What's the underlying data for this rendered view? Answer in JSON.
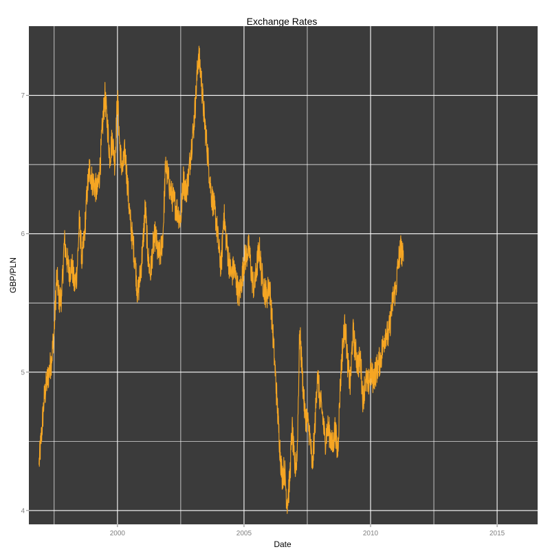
{
  "chart_data": {
    "type": "line",
    "title": "Exchange Rates",
    "xlabel": "Date",
    "ylabel": "GBP/PLN",
    "x_ticks": [
      {
        "year": 2000,
        "label": "2000"
      },
      {
        "year": 2005,
        "label": "2005"
      },
      {
        "year": 2010,
        "label": "2010"
      },
      {
        "year": 2015,
        "label": "2015"
      }
    ],
    "y_ticks": [
      {
        "value": 4,
        "label": "4"
      },
      {
        "value": 5,
        "label": "5"
      },
      {
        "value": 6,
        "label": "6"
      },
      {
        "value": 7,
        "label": "7"
      }
    ],
    "xlim": [
      1996.5,
      2016.6
    ],
    "ylim": [
      3.9,
      7.5
    ],
    "grid": true,
    "legend": "none",
    "colors": {
      "panel": "#3b3b3b",
      "grid": "#ffffff",
      "line": "#f6a623"
    },
    "series": [
      {
        "points": [
          [
            1996.9,
            4.33
          ],
          [
            1997.0,
            4.55
          ],
          [
            1997.1,
            4.8
          ],
          [
            1997.2,
            4.92
          ],
          [
            1997.3,
            5.0
          ],
          [
            1997.4,
            5.1
          ],
          [
            1997.5,
            5.3
          ],
          [
            1997.6,
            5.7
          ],
          [
            1997.7,
            5.52
          ],
          [
            1997.8,
            5.55
          ],
          [
            1997.9,
            5.95
          ],
          [
            1998.0,
            5.82
          ],
          [
            1998.1,
            5.72
          ],
          [
            1998.2,
            5.78
          ],
          [
            1998.3,
            5.62
          ],
          [
            1998.4,
            5.72
          ],
          [
            1998.5,
            6.1
          ],
          [
            1998.6,
            5.8
          ],
          [
            1998.7,
            6.0
          ],
          [
            1998.8,
            6.3
          ],
          [
            1998.9,
            6.48
          ],
          [
            1999.0,
            6.38
          ],
          [
            1999.1,
            6.35
          ],
          [
            1999.2,
            6.3
          ],
          [
            1999.3,
            6.45
          ],
          [
            1999.4,
            6.75
          ],
          [
            1999.5,
            7.0
          ],
          [
            1999.6,
            6.8
          ],
          [
            1999.7,
            6.55
          ],
          [
            1999.8,
            6.7
          ],
          [
            1999.9,
            6.5
          ],
          [
            2000.0,
            7.0
          ],
          [
            2000.1,
            6.6
          ],
          [
            2000.2,
            6.45
          ],
          [
            2000.3,
            6.6
          ],
          [
            2000.4,
            6.35
          ],
          [
            2000.5,
            6.1
          ],
          [
            2000.6,
            5.95
          ],
          [
            2000.7,
            5.8
          ],
          [
            2000.8,
            5.55
          ],
          [
            2000.9,
            5.7
          ],
          [
            2001.0,
            5.9
          ],
          [
            2001.1,
            6.2
          ],
          [
            2001.2,
            5.85
          ],
          [
            2001.3,
            5.7
          ],
          [
            2001.4,
            5.9
          ],
          [
            2001.5,
            6.0
          ],
          [
            2001.6,
            5.85
          ],
          [
            2001.7,
            5.85
          ],
          [
            2001.8,
            6.0
          ],
          [
            2001.9,
            6.5
          ],
          [
            2002.0,
            6.4
          ],
          [
            2002.1,
            6.3
          ],
          [
            2002.2,
            6.25
          ],
          [
            2002.3,
            6.2
          ],
          [
            2002.4,
            6.15
          ],
          [
            2002.5,
            6.1
          ],
          [
            2002.6,
            6.4
          ],
          [
            2002.7,
            6.3
          ],
          [
            2002.8,
            6.4
          ],
          [
            2002.9,
            6.6
          ],
          [
            2003.0,
            6.75
          ],
          [
            2003.1,
            7.0
          ],
          [
            2003.2,
            7.3
          ],
          [
            2003.3,
            7.15
          ],
          [
            2003.4,
            6.9
          ],
          [
            2003.5,
            6.7
          ],
          [
            2003.6,
            6.5
          ],
          [
            2003.7,
            6.3
          ],
          [
            2003.8,
            6.2
          ],
          [
            2003.9,
            6.1
          ],
          [
            2004.0,
            5.9
          ],
          [
            2004.1,
            5.75
          ],
          [
            2004.2,
            6.15
          ],
          [
            2004.3,
            5.95
          ],
          [
            2004.4,
            5.8
          ],
          [
            2004.5,
            5.7
          ],
          [
            2004.6,
            5.75
          ],
          [
            2004.7,
            5.65
          ],
          [
            2004.8,
            5.55
          ],
          [
            2004.9,
            5.65
          ],
          [
            2005.0,
            5.8
          ],
          [
            2005.1,
            5.85
          ],
          [
            2005.2,
            5.9
          ],
          [
            2005.3,
            5.7
          ],
          [
            2005.4,
            5.6
          ],
          [
            2005.5,
            5.75
          ],
          [
            2005.6,
            5.9
          ],
          [
            2005.7,
            5.7
          ],
          [
            2005.8,
            5.6
          ],
          [
            2005.9,
            5.55
          ],
          [
            2006.0,
            5.65
          ],
          [
            2006.1,
            5.4
          ],
          [
            2006.2,
            5.1
          ],
          [
            2006.3,
            4.8
          ],
          [
            2006.4,
            4.5
          ],
          [
            2006.5,
            4.25
          ],
          [
            2006.6,
            4.3
          ],
          [
            2006.7,
            4.05
          ],
          [
            2006.8,
            4.2
          ],
          [
            2006.9,
            4.6
          ],
          [
            2007.0,
            4.3
          ],
          [
            2007.1,
            4.4
          ],
          [
            2007.2,
            5.3
          ],
          [
            2007.3,
            5.0
          ],
          [
            2007.4,
            4.7
          ],
          [
            2007.5,
            4.65
          ],
          [
            2007.6,
            4.55
          ],
          [
            2007.7,
            4.3
          ],
          [
            2007.8,
            4.6
          ],
          [
            2007.9,
            5.0
          ],
          [
            2008.0,
            4.8
          ],
          [
            2008.1,
            4.7
          ],
          [
            2008.2,
            4.5
          ],
          [
            2008.3,
            4.6
          ],
          [
            2008.4,
            4.55
          ],
          [
            2008.5,
            4.45
          ],
          [
            2008.6,
            4.6
          ],
          [
            2008.7,
            4.4
          ],
          [
            2008.8,
            4.9
          ],
          [
            2008.9,
            5.2
          ],
          [
            2009.0,
            5.35
          ],
          [
            2009.1,
            5.05
          ],
          [
            2009.2,
            4.9
          ],
          [
            2009.3,
            5.3
          ],
          [
            2009.4,
            5.15
          ],
          [
            2009.5,
            5.05
          ],
          [
            2009.6,
            5.1
          ],
          [
            2009.7,
            4.8
          ],
          [
            2009.8,
            4.95
          ],
          [
            2009.9,
            4.9
          ],
          [
            2010.0,
            5.0
          ],
          [
            2010.1,
            4.95
          ],
          [
            2010.2,
            5.0
          ],
          [
            2010.3,
            5.05
          ],
          [
            2010.4,
            5.1
          ],
          [
            2010.5,
            5.2
          ],
          [
            2010.6,
            5.3
          ],
          [
            2010.7,
            5.25
          ],
          [
            2010.8,
            5.4
          ],
          [
            2010.9,
            5.55
          ],
          [
            2011.0,
            5.6
          ],
          [
            2011.1,
            5.8
          ],
          [
            2011.2,
            5.9
          ],
          [
            2011.3,
            5.8
          ]
        ]
      }
    ]
  }
}
